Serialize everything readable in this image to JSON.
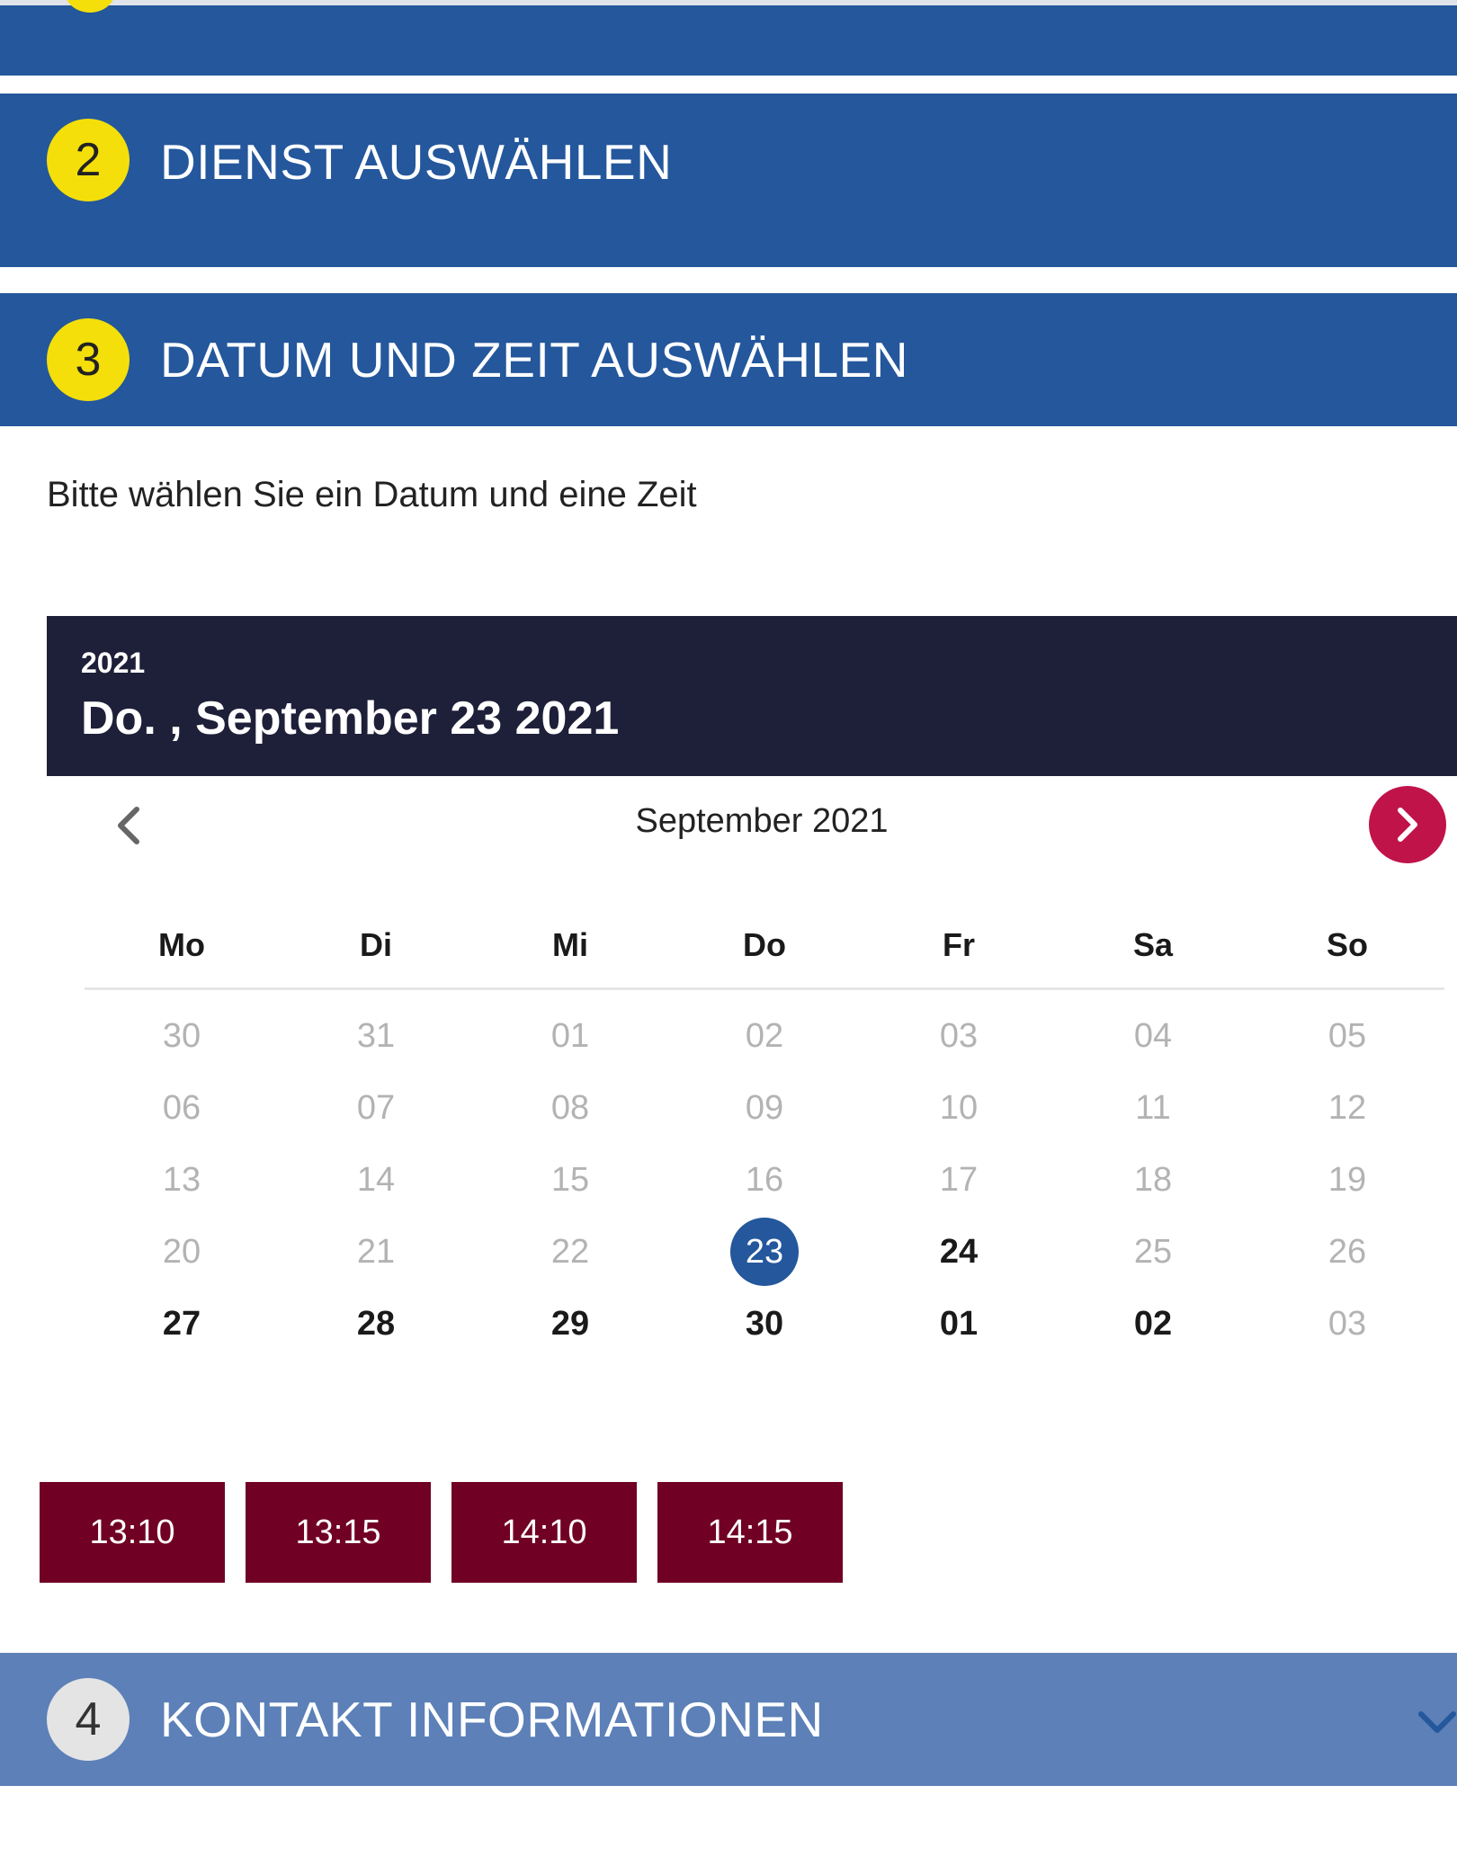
{
  "steps": {
    "step2": {
      "number": "2",
      "title": "DIENST AUSWÄHLEN"
    },
    "step3": {
      "number": "3",
      "title": "DATUM UND ZEIT AUSWÄHLEN"
    },
    "step4": {
      "number": "4",
      "title": "KONTAKT INFORMATIONEN"
    }
  },
  "instructions": "Bitte wählen Sie ein Datum und eine Zeit",
  "calendar": {
    "header_year": "2021",
    "header_date": "Do. , September 23 2021",
    "month_label": "September 2021",
    "weekdays": [
      "Mo",
      "Di",
      "Mi",
      "Do",
      "Fr",
      "Sa",
      "So"
    ],
    "weeks": [
      [
        {
          "d": "30",
          "s": "off"
        },
        {
          "d": "31",
          "s": "off"
        },
        {
          "d": "01",
          "s": "off"
        },
        {
          "d": "02",
          "s": "off"
        },
        {
          "d": "03",
          "s": "off"
        },
        {
          "d": "04",
          "s": "off"
        },
        {
          "d": "05",
          "s": "off"
        }
      ],
      [
        {
          "d": "06",
          "s": "off"
        },
        {
          "d": "07",
          "s": "off"
        },
        {
          "d": "08",
          "s": "off"
        },
        {
          "d": "09",
          "s": "off"
        },
        {
          "d": "10",
          "s": "off"
        },
        {
          "d": "11",
          "s": "off"
        },
        {
          "d": "12",
          "s": "off"
        }
      ],
      [
        {
          "d": "13",
          "s": "off"
        },
        {
          "d": "14",
          "s": "off"
        },
        {
          "d": "15",
          "s": "off"
        },
        {
          "d": "16",
          "s": "off"
        },
        {
          "d": "17",
          "s": "off"
        },
        {
          "d": "18",
          "s": "off"
        },
        {
          "d": "19",
          "s": "off"
        }
      ],
      [
        {
          "d": "20",
          "s": "off"
        },
        {
          "d": "21",
          "s": "off"
        },
        {
          "d": "22",
          "s": "off"
        },
        {
          "d": "23",
          "s": "selected"
        },
        {
          "d": "24",
          "s": "avail"
        },
        {
          "d": "25",
          "s": "off"
        },
        {
          "d": "26",
          "s": "off"
        }
      ],
      [
        {
          "d": "27",
          "s": "avail"
        },
        {
          "d": "28",
          "s": "avail"
        },
        {
          "d": "29",
          "s": "avail"
        },
        {
          "d": "30",
          "s": "avail"
        },
        {
          "d": "01",
          "s": "avail"
        },
        {
          "d": "02",
          "s": "avail"
        },
        {
          "d": "03",
          "s": "off"
        }
      ]
    ]
  },
  "times": [
    "13:10",
    "13:15",
    "14:10",
    "14:15"
  ],
  "colors": {
    "step_bar": "#24579c",
    "step_bar_inactive": "#5c80b7",
    "step_badge": "#f4df0a",
    "calendar_header": "#1e1f38",
    "next_button": "#c0134a",
    "time_button": "#700024",
    "selected_day": "#24579c"
  },
  "icons": {
    "prev": "chevron-left-icon",
    "next": "chevron-right-icon",
    "expand": "chevron-down-icon"
  }
}
